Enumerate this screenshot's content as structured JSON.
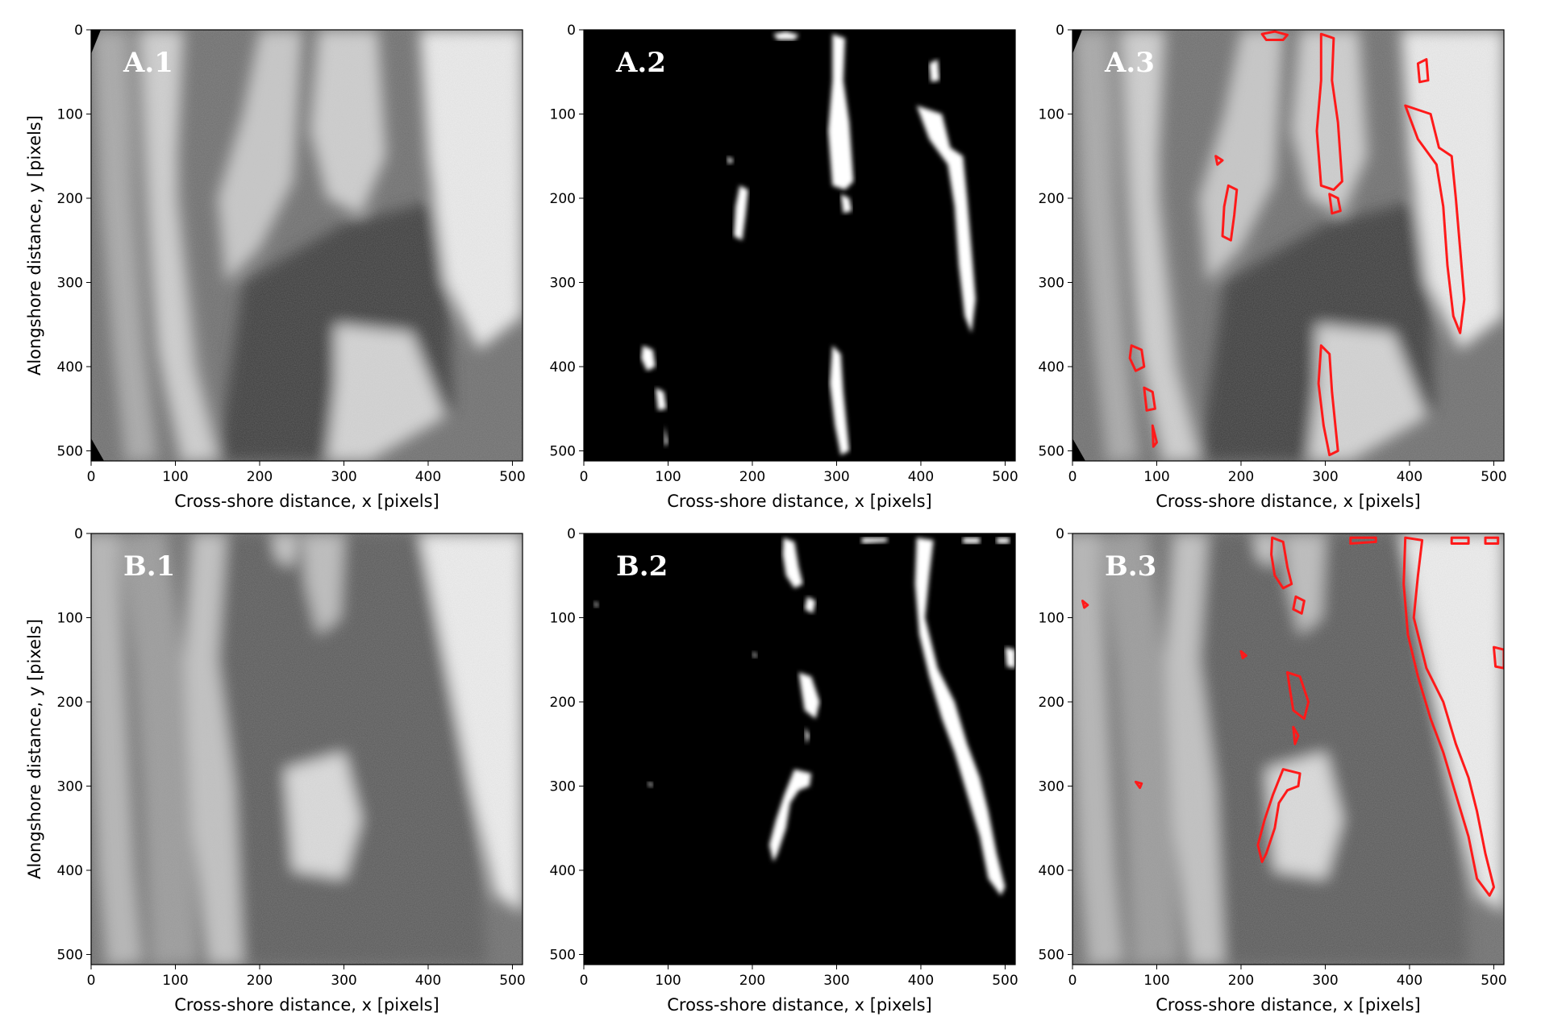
{
  "axes": {
    "xlabel": "Cross-shore distance, x [pixels]",
    "ylabel": "Alongshore distance, y [pixels]",
    "xticks": [
      0,
      100,
      200,
      300,
      400,
      500
    ],
    "yticks": [
      0,
      100,
      200,
      300,
      400,
      500
    ],
    "xlim": [
      0,
      512
    ],
    "ylim": [
      512,
      0
    ]
  },
  "colors": {
    "contour": "#ff1a1a",
    "mask_fg": "#ffffff",
    "mask_bg": "#000000",
    "panel_label_on_photo": "#ffffff",
    "panel_label_on_mask": "#ffffff"
  },
  "panels": [
    {
      "id": "A.1",
      "label": "A.1",
      "kind": "photo",
      "scene": "A",
      "show_ylabel": true
    },
    {
      "id": "A.2",
      "label": "A.2",
      "kind": "mask",
      "scene": "A",
      "show_ylabel": false
    },
    {
      "id": "A.3",
      "label": "A.3",
      "kind": "overlay",
      "scene": "A",
      "show_ylabel": false
    },
    {
      "id": "B.1",
      "label": "B.1",
      "kind": "photo",
      "scene": "B",
      "show_ylabel": true
    },
    {
      "id": "B.2",
      "label": "B.2",
      "kind": "mask",
      "scene": "B",
      "show_ylabel": false
    },
    {
      "id": "B.3",
      "label": "B.3",
      "kind": "overlay",
      "scene": "B",
      "show_ylabel": false
    }
  ],
  "scenes": {
    "A": {
      "shore_bands": [
        {
          "pts": [
            [
              60,
              0
            ],
            [
              75,
              140
            ],
            [
              90,
              280
            ],
            [
              110,
              420
            ],
            [
              130,
              512
            ]
          ],
          "width": 55,
          "color": "#8a8a8a"
        },
        {
          "pts": [
            [
              20,
              0
            ],
            [
              30,
              200
            ],
            [
              45,
              380
            ],
            [
              60,
              512
            ]
          ],
          "width": 40,
          "color": "#a8a8a8"
        }
      ],
      "dark_regions": [
        {
          "pts": [
            [
              180,
              300
            ],
            [
              300,
              230
            ],
            [
              420,
              200
            ],
            [
              430,
              450
            ],
            [
              300,
              512
            ],
            [
              150,
              512
            ]
          ],
          "color": "#3a3a3a"
        },
        {
          "pts": [
            [
              200,
              0
            ],
            [
              260,
              0
            ],
            [
              250,
              150
            ],
            [
              200,
              200
            ]
          ],
          "color": "#555555"
        }
      ],
      "foam_regions": [
        {
          "pts": [
            [
              60,
              0
            ],
            [
              110,
              0
            ],
            [
              100,
              200
            ],
            [
              120,
              400
            ],
            [
              150,
              512
            ],
            [
              110,
              512
            ],
            [
              80,
              380
            ],
            [
              70,
              200
            ]
          ],
          "color": "#d0d0d0"
        },
        {
          "pts": [
            [
              200,
              0
            ],
            [
              250,
              0
            ],
            [
              240,
              180
            ],
            [
              200,
              260
            ],
            [
              160,
              300
            ],
            [
              150,
              200
            ],
            [
              180,
              100
            ]
          ],
          "color": "#c8c8c8"
        },
        {
          "pts": [
            [
              270,
              0
            ],
            [
              340,
              0
            ],
            [
              350,
              150
            ],
            [
              320,
              220
            ],
            [
              280,
              200
            ],
            [
              260,
              120
            ]
          ],
          "color": "#cfcfcf"
        },
        {
          "pts": [
            [
              390,
              0
            ],
            [
              512,
              0
            ],
            [
              512,
              340
            ],
            [
              460,
              380
            ],
            [
              420,
              300
            ],
            [
              400,
              150
            ]
          ],
          "color": "#eeeeee"
        },
        {
          "pts": [
            [
              290,
              350
            ],
            [
              380,
              360
            ],
            [
              420,
              460
            ],
            [
              330,
              512
            ],
            [
              280,
              512
            ],
            [
              290,
              420
            ]
          ],
          "color": "#d5d5d5"
        }
      ],
      "blobs": [
        [
          [
            225,
            5
          ],
          [
            240,
            2
          ],
          [
            255,
            6
          ],
          [
            250,
            12
          ],
          [
            230,
            12
          ]
        ],
        [
          [
            295,
            5
          ],
          [
            310,
            10
          ],
          [
            308,
            60
          ],
          [
            315,
            110
          ],
          [
            320,
            180
          ],
          [
            310,
            190
          ],
          [
            295,
            185
          ],
          [
            290,
            120
          ],
          [
            295,
            60
          ]
        ],
        [
          [
            305,
            195
          ],
          [
            315,
            200
          ],
          [
            318,
            215
          ],
          [
            308,
            218
          ]
        ],
        [
          [
            410,
            40
          ],
          [
            420,
            35
          ],
          [
            422,
            60
          ],
          [
            412,
            62
          ]
        ],
        [
          [
            395,
            90
          ],
          [
            425,
            100
          ],
          [
            435,
            140
          ],
          [
            450,
            150
          ],
          [
            455,
            200
          ],
          [
            460,
            260
          ],
          [
            465,
            320
          ],
          [
            460,
            360
          ],
          [
            452,
            340
          ],
          [
            445,
            280
          ],
          [
            440,
            210
          ],
          [
            432,
            160
          ],
          [
            410,
            130
          ]
        ],
        [
          [
            185,
            185
          ],
          [
            195,
            190
          ],
          [
            192,
            220
          ],
          [
            188,
            250
          ],
          [
            178,
            245
          ],
          [
            180,
            210
          ]
        ],
        [
          [
            170,
            150
          ],
          [
            178,
            155
          ],
          [
            172,
            160
          ]
        ],
        [
          [
            70,
            375
          ],
          [
            82,
            380
          ],
          [
            85,
            400
          ],
          [
            75,
            405
          ],
          [
            68,
            390
          ]
        ],
        [
          [
            85,
            425
          ],
          [
            95,
            430
          ],
          [
            98,
            450
          ],
          [
            88,
            452
          ]
        ],
        [
          [
            95,
            470
          ],
          [
            100,
            490
          ],
          [
            96,
            495
          ]
        ],
        [
          [
            295,
            375
          ],
          [
            305,
            385
          ],
          [
            308,
            430
          ],
          [
            312,
            470
          ],
          [
            315,
            500
          ],
          [
            305,
            505
          ],
          [
            298,
            470
          ],
          [
            292,
            420
          ]
        ]
      ]
    },
    "B": {
      "shore_bands": [
        {
          "pts": [
            [
              60,
              0
            ],
            [
              80,
              150
            ],
            [
              90,
              300
            ],
            [
              95,
              420
            ],
            [
              100,
              512
            ]
          ],
          "width": 60,
          "color": "#9a9a9a"
        },
        {
          "pts": [
            [
              10,
              0
            ],
            [
              20,
              200
            ],
            [
              30,
              400
            ],
            [
              40,
              512
            ]
          ],
          "width": 45,
          "color": "#b5b5b5"
        }
      ],
      "dark_regions": [
        {
          "pts": [
            [
              120,
              0
            ],
            [
              400,
              0
            ],
            [
              450,
              200
            ],
            [
              470,
              512
            ],
            [
              120,
              512
            ],
            [
              150,
              300
            ]
          ],
          "color": "#5a5a5a"
        }
      ],
      "foam_regions": [
        {
          "pts": [
            [
              120,
              0
            ],
            [
              160,
              0
            ],
            [
              150,
              150
            ],
            [
              170,
              300
            ],
            [
              180,
              512
            ],
            [
              140,
              512
            ],
            [
              120,
              350
            ],
            [
              110,
              150
            ]
          ],
          "color": "#c2c2c2"
        },
        {
          "pts": [
            [
              230,
              280
            ],
            [
              300,
              260
            ],
            [
              320,
              340
            ],
            [
              300,
              410
            ],
            [
              240,
              400
            ]
          ],
          "color": "#dddddd"
        },
        {
          "pts": [
            [
              250,
              0
            ],
            [
              300,
              0
            ],
            [
              295,
              100
            ],
            [
              270,
              120
            ],
            [
              255,
              60
            ]
          ],
          "color": "#bdbdbd"
        },
        {
          "pts": [
            [
              390,
              0
            ],
            [
              512,
              0
            ],
            [
              512,
              450
            ],
            [
              480,
              430
            ],
            [
              450,
              300
            ],
            [
              420,
              150
            ]
          ],
          "color": "#f0f0f0"
        },
        {
          "pts": [
            [
              215,
              0
            ],
            [
              245,
              0
            ],
            [
              240,
              40
            ],
            [
              220,
              30
            ]
          ],
          "color": "#c8c8c8"
        }
      ],
      "blobs": [
        [
          [
            237,
            5
          ],
          [
            250,
            10
          ],
          [
            255,
            40
          ],
          [
            260,
            60
          ],
          [
            250,
            65
          ],
          [
            240,
            50
          ],
          [
            236,
            25
          ]
        ],
        [
          [
            265,
            75
          ],
          [
            275,
            80
          ],
          [
            272,
            95
          ],
          [
            262,
            90
          ]
        ],
        [
          [
            395,
            5
          ],
          [
            415,
            8
          ],
          [
            410,
            50
          ],
          [
            405,
            100
          ],
          [
            420,
            160
          ],
          [
            440,
            200
          ],
          [
            455,
            250
          ],
          [
            470,
            290
          ],
          [
            480,
            330
          ],
          [
            490,
            380
          ],
          [
            500,
            420
          ],
          [
            495,
            430
          ],
          [
            480,
            410
          ],
          [
            470,
            360
          ],
          [
            455,
            310
          ],
          [
            440,
            260
          ],
          [
            425,
            220
          ],
          [
            410,
            170
          ],
          [
            398,
            120
          ],
          [
            393,
            60
          ]
        ],
        [
          [
            255,
            165
          ],
          [
            270,
            170
          ],
          [
            280,
            200
          ],
          [
            275,
            220
          ],
          [
            262,
            210
          ],
          [
            258,
            185
          ]
        ],
        [
          [
            262,
            230
          ],
          [
            268,
            240
          ],
          [
            264,
            250
          ]
        ],
        [
          [
            250,
            280
          ],
          [
            270,
            285
          ],
          [
            268,
            300
          ],
          [
            255,
            305
          ],
          [
            245,
            320
          ],
          [
            240,
            350
          ],
          [
            230,
            380
          ],
          [
            225,
            390
          ],
          [
            220,
            370
          ],
          [
            228,
            340
          ],
          [
            238,
            310
          ]
        ],
        [
          [
            75,
            295
          ],
          [
            82,
            297
          ],
          [
            80,
            302
          ]
        ],
        [
          [
            330,
            5
          ],
          [
            360,
            5
          ],
          [
            360,
            10
          ],
          [
            330,
            12
          ]
        ],
        [
          [
            450,
            5
          ],
          [
            470,
            5
          ],
          [
            470,
            12
          ],
          [
            450,
            12
          ]
        ],
        [
          [
            490,
            5
          ],
          [
            505,
            5
          ],
          [
            505,
            12
          ],
          [
            490,
            12
          ]
        ],
        [
          [
            500,
            135
          ],
          [
            512,
            138
          ],
          [
            512,
            160
          ],
          [
            502,
            158
          ]
        ],
        [
          [
            200,
            140
          ],
          [
            206,
            145
          ],
          [
            202,
            148
          ]
        ],
        [
          [
            12,
            80
          ],
          [
            18,
            85
          ],
          [
            14,
            88
          ]
        ]
      ]
    }
  }
}
